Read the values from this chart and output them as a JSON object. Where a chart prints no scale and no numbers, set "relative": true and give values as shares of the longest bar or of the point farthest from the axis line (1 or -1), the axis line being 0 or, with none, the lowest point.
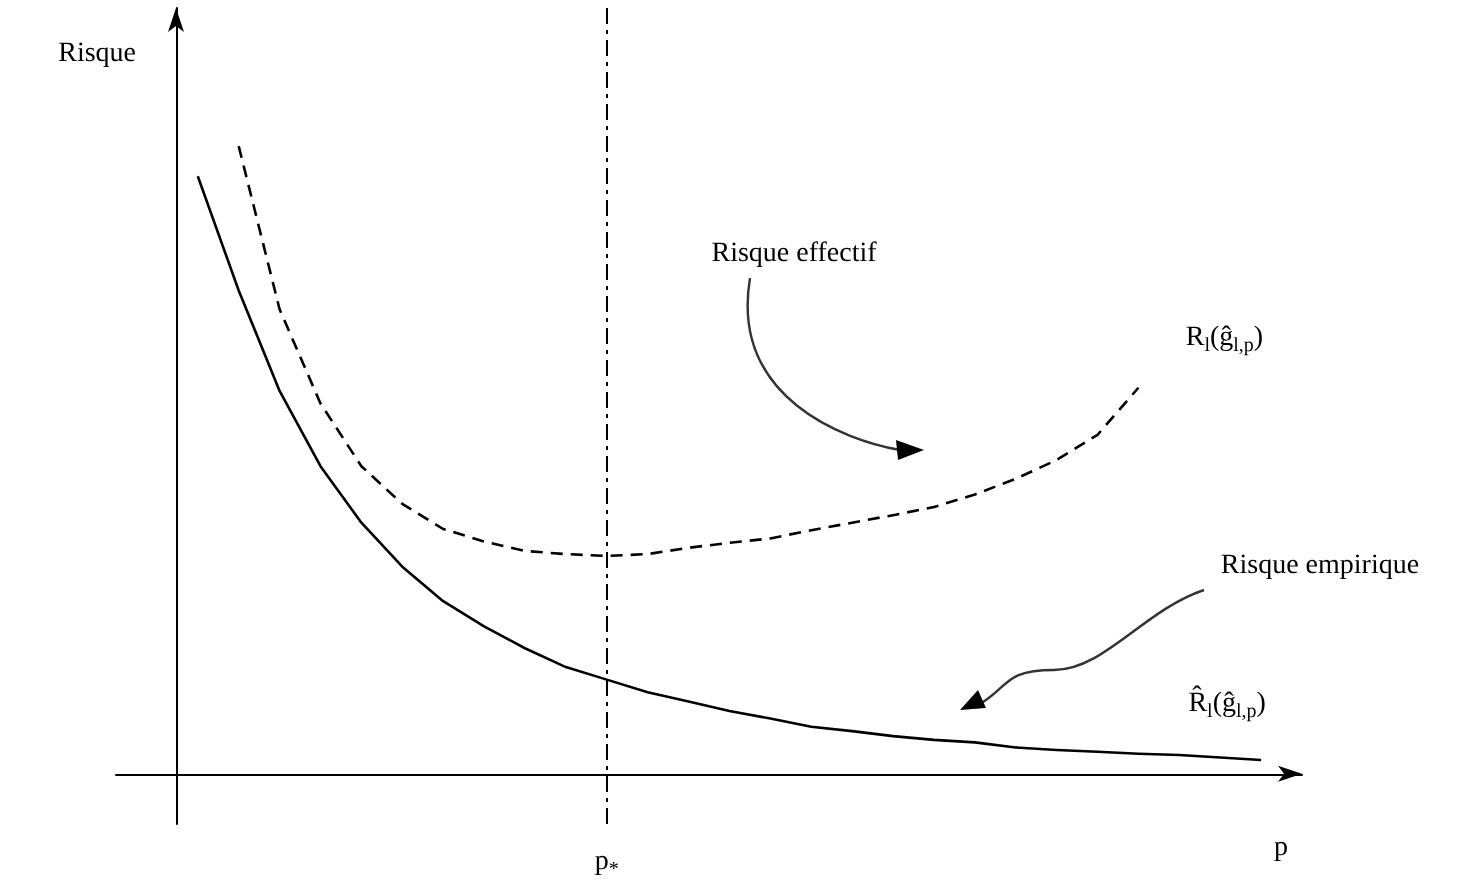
{
  "chart_data": {
    "type": "line",
    "relative": true,
    "ylabel": "Risque",
    "xlabel": "p",
    "legend": false,
    "grid": false,
    "marker": "none",
    "categories": [
      null,
      null,
      null,
      null,
      null,
      null,
      null,
      null,
      null,
      null,
      null,
      null,
      null,
      null,
      null,
      null,
      null,
      null,
      null,
      null,
      null,
      null,
      null,
      null,
      null,
      null,
      null,
      null,
      null,
      null
    ],
    "series": [
      {
        "name": "R$_{l}$(ĝ$_{l,p}$)",
        "color": "#000000",
        "line_style": "dashed",
        "values": [
          null,
          null,
          null,
          1.0,
          0.74,
          0.59,
          0.49,
          0.43,
          0.39,
          0.37,
          0.355,
          0.35,
          0.347,
          0.35,
          0.36,
          0.368,
          0.375,
          0.388,
          0.4,
          0.412,
          0.425,
          0.445,
          0.47,
          0.5,
          0.54,
          0.615,
          null,
          null,
          null,
          null
        ]
      },
      {
        "name": "R̂$_{l}$(ĝ$_{l,p}$)",
        "color": "#000000",
        "line_style": "solid",
        "values": [
          null,
          null,
          0.952,
          0.77,
          0.61,
          0.49,
          0.4,
          0.33,
          0.275,
          0.235,
          0.2,
          0.17,
          0.15,
          0.13,
          0.115,
          0.1,
          0.088,
          0.075,
          0.068,
          0.06,
          0.054,
          0.05,
          0.042,
          0.038,
          0.035,
          0.032,
          0.03,
          0.026,
          0.022,
          null
        ]
      }
    ],
    "ref_lines": [
      {
        "axis": "x",
        "label": "p$_{*}$",
        "line_style": "dashed",
        "color": "#000000"
      }
    ],
    "annotations": [
      "Risque effectif",
      "Risque empirique"
    ]
  }
}
